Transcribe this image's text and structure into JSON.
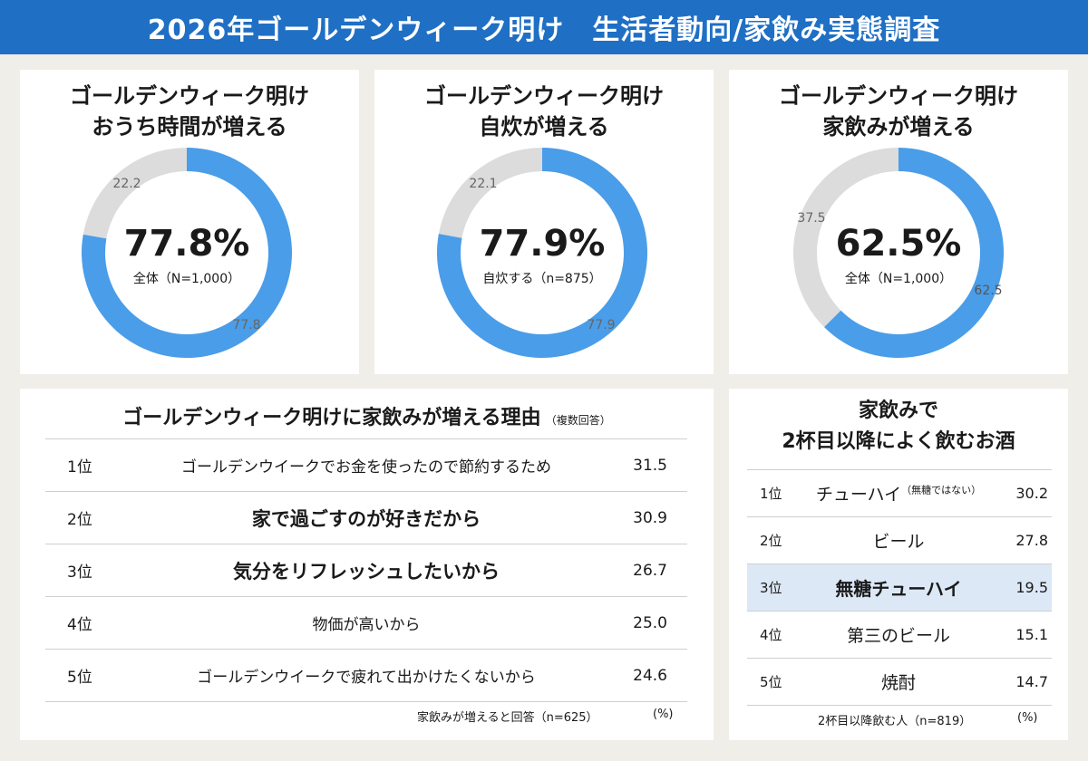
{
  "header": {
    "title": "2026年ゴールデンウィーク明け　生活者動向/家飲み実態調査"
  },
  "colors": {
    "accent": "#1f6fc5",
    "donut_main": "#4a9de8",
    "donut_rest": "#dcdcdc",
    "highlight_row": "#dce8f5"
  },
  "chart_data": [
    {
      "type": "pie",
      "title_line1": "ゴールデンウィーク明け",
      "title_line2": "おうち時間が増える",
      "center_value": "77.8%",
      "base_label": "全体（N=1,000）",
      "slices": [
        {
          "value": 77.8,
          "label": "77.8"
        },
        {
          "value": 22.2,
          "label": "22.2"
        }
      ]
    },
    {
      "type": "pie",
      "title_line1": "ゴールデンウィーク明け",
      "title_line2": "自炊が増える",
      "center_value": "77.9%",
      "base_label": "自炊する（n=875）",
      "slices": [
        {
          "value": 77.9,
          "label": "77.9"
        },
        {
          "value": 22.1,
          "label": "22.1"
        }
      ]
    },
    {
      "type": "pie",
      "title_line1": "ゴールデンウィーク明け",
      "title_line2": "家飲みが増える",
      "center_value": "62.5%",
      "base_label": "全体（N=1,000）",
      "slices": [
        {
          "value": 62.5,
          "label": "62.5"
        },
        {
          "value": 37.5,
          "label": "37.5"
        }
      ]
    },
    {
      "type": "table",
      "title": "ゴールデンウィーク明けに家飲みが増える理由",
      "title_note": "（複数回答）",
      "rows": [
        {
          "rank": "1位",
          "item": "ゴールデンウイークでお金を使ったので節約するため",
          "value": "31.5",
          "bold": false
        },
        {
          "rank": "2位",
          "item": "家で過ごすのが好きだから",
          "value": "30.9",
          "bold": true
        },
        {
          "rank": "3位",
          "item": "気分をリフレッシュしたいから",
          "value": "26.7",
          "bold": true
        },
        {
          "rank": "4位",
          "item": "物価が高いから",
          "value": "25.0",
          "bold": false
        },
        {
          "rank": "5位",
          "item": "ゴールデンウイークで疲れて出かけたくないから",
          "value": "24.6",
          "bold": false
        }
      ],
      "footnote": "家飲みが増えると回答（n=625）",
      "unit": "(%)"
    },
    {
      "type": "table",
      "title_line1": "家飲みで",
      "title_line2": "2杯目以降によく飲むお酒",
      "rows": [
        {
          "rank": "1位",
          "item": "チューハイ",
          "item_note": "（無糖ではない）",
          "value": "30.2",
          "highlight": false
        },
        {
          "rank": "2位",
          "item": "ビール",
          "item_note": "",
          "value": "27.8",
          "highlight": false
        },
        {
          "rank": "3位",
          "item": "無糖チューハイ",
          "item_note": "",
          "value": "19.5",
          "highlight": true
        },
        {
          "rank": "4位",
          "item": "第三のビール",
          "item_note": "",
          "value": "15.1",
          "highlight": false
        },
        {
          "rank": "5位",
          "item": "焼酎",
          "item_note": "",
          "value": "14.7",
          "highlight": false
        }
      ],
      "footnote": "2杯目以降飲む人（n=819）",
      "unit": "(%)"
    }
  ]
}
